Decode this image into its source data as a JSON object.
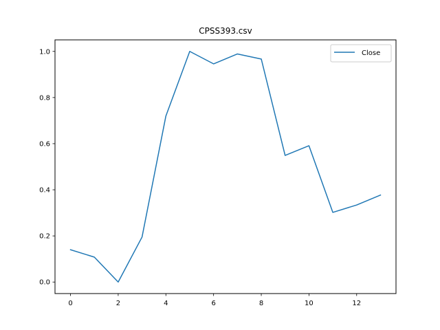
{
  "chart_data": {
    "type": "line",
    "title": "CPSS393.csv",
    "xlabel": "",
    "ylabel": "",
    "x": [
      0,
      1,
      2,
      3,
      4,
      5,
      6,
      7,
      8,
      9,
      10,
      11,
      12,
      13
    ],
    "series": [
      {
        "name": "Close",
        "color": "#1f77b4",
        "values": [
          0.14,
          0.108,
          0.0,
          0.195,
          0.72,
          1.0,
          0.946,
          0.989,
          0.967,
          0.549,
          0.591,
          0.302,
          0.334,
          0.377
        ]
      }
    ],
    "xlim": [
      -0.65,
      13.65
    ],
    "ylim": [
      -0.05,
      1.05
    ],
    "xticks": [
      0,
      2,
      4,
      6,
      8,
      10,
      12
    ],
    "xtick_labels": [
      "0",
      "2",
      "4",
      "6",
      "8",
      "10",
      "12"
    ],
    "yticks": [
      0.0,
      0.2,
      0.4,
      0.6,
      0.8,
      1.0
    ],
    "ytick_labels": [
      "0.0",
      "0.2",
      "0.4",
      "0.6",
      "0.8",
      "1.0"
    ],
    "grid": false,
    "legend_position": "top-right"
  }
}
